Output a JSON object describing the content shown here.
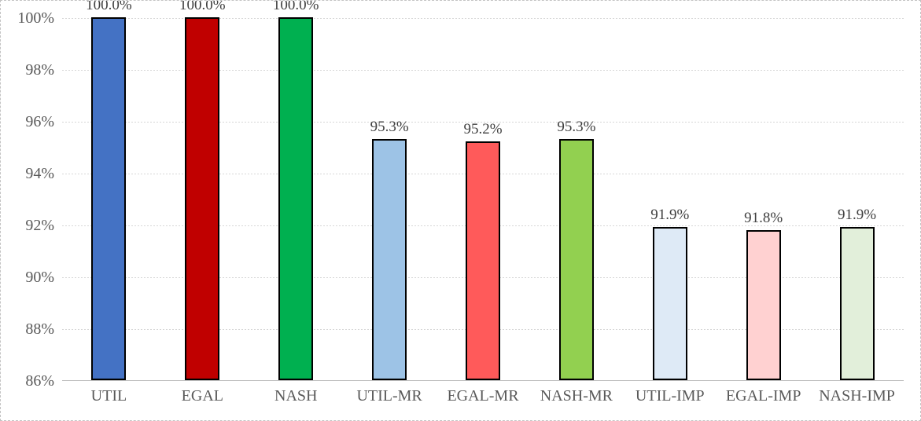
{
  "chart_data": {
    "type": "bar",
    "title": "",
    "xlabel": "",
    "ylabel": "",
    "categories": [
      "UTIL",
      "EGAL",
      "NASH",
      "UTIL-MR",
      "EGAL-MR",
      "NASH-MR",
      "UTIL-IMP",
      "EGAL-IMP",
      "NASH-IMP"
    ],
    "values": [
      100.0,
      100.0,
      100.0,
      95.3,
      95.2,
      95.3,
      91.9,
      91.8,
      91.9
    ],
    "value_labels": [
      "100.0%",
      "100.0%",
      "100.0%",
      "95.3%",
      "95.2%",
      "95.3%",
      "91.9%",
      "91.8%",
      "91.9%"
    ],
    "bar_colors": [
      "#4472C4",
      "#C00000",
      "#00B050",
      "#9DC3E6",
      "#FF5A5A",
      "#92D050",
      "#DEEAF6",
      "#FFD1D1",
      "#E2EFDA"
    ],
    "bar_border_color": "#000000",
    "ylim": [
      86,
      100
    ],
    "ytick_step": 2,
    "yticks": [
      "100%",
      "98%",
      "96%",
      "94%",
      "92%",
      "90%",
      "88%",
      "86%"
    ],
    "grid": "horizontal-dashed",
    "grid_color": "#D7D7D7",
    "axis_line_color": "#BFBFBF",
    "axis_text_color": "#595959",
    "label_text_color": "#404040",
    "legend": "none"
  }
}
